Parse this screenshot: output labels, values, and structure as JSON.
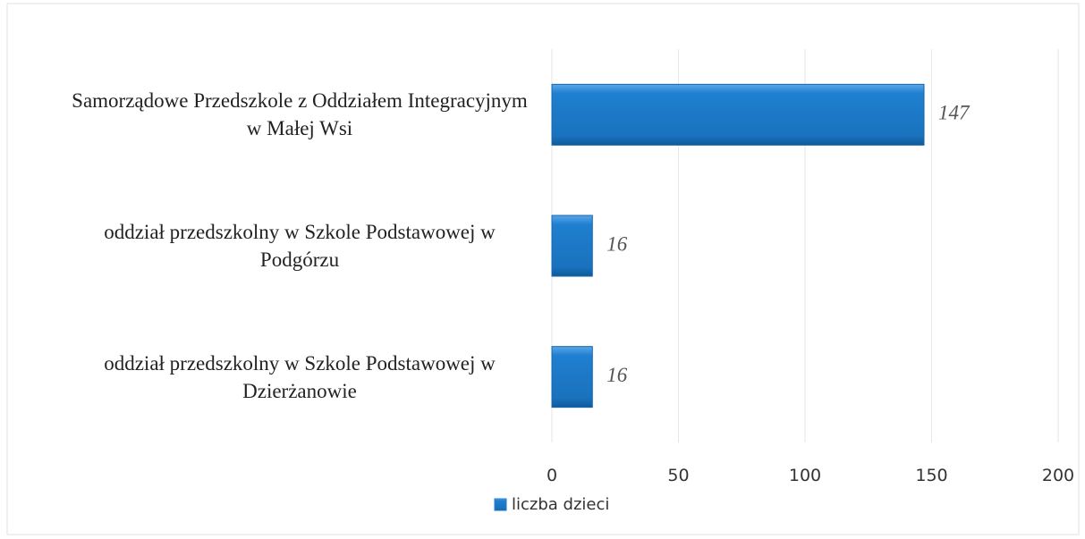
{
  "chart_data": {
    "type": "bar",
    "orientation": "horizontal",
    "categories": [
      "Samorządowe Przedszkole z Oddziałem Integracyjnym w Małej Wsi",
      "oddział przedszkolny w Szkole Podstawowej w Podgórzu",
      "oddział przedszkolny w Szkole Podstawowej w Dzierżanowie"
    ],
    "series": [
      {
        "name": "liczba dzieci",
        "color": "#1f7fd0",
        "values": [
          147,
          16,
          16
        ]
      }
    ],
    "xlim": [
      0,
      200
    ],
    "xticks": [
      0,
      50,
      100,
      150,
      200
    ],
    "grid": true,
    "legend": "bottom"
  }
}
